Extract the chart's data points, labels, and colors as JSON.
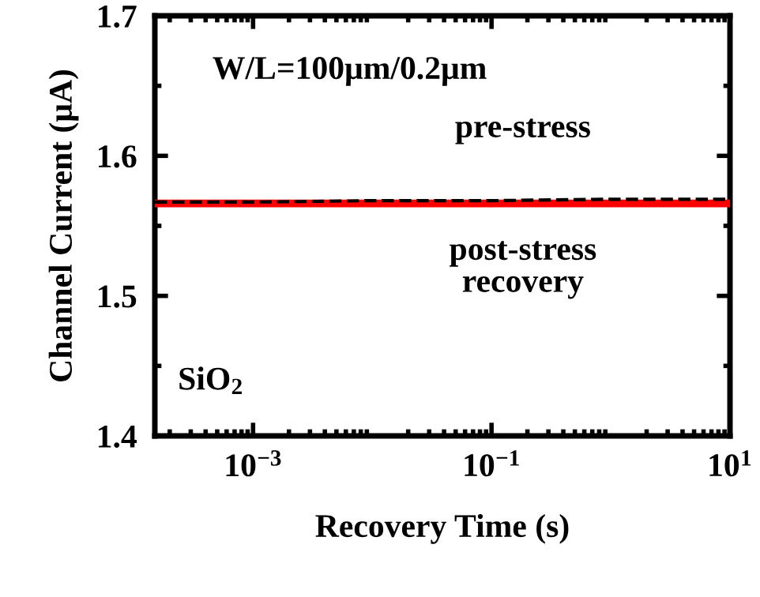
{
  "chart_data": {
    "type": "line",
    "xlabel": "Recovery Time (s)",
    "ylabel": "Channel Current (μA)",
    "log": "x",
    "xlim": [
      0.00015,
      10
    ],
    "ylim": [
      1.4,
      1.7
    ],
    "xticks": [
      {
        "value": 0.001,
        "label": "10$^{−3}$"
      },
      {
        "value": 0.1,
        "label": "10$^{−1}$"
      },
      {
        "value": 10,
        "label": "10$^{1}$"
      }
    ],
    "yticks": [
      {
        "value": 1.4,
        "label": "1.4"
      },
      {
        "value": 1.5,
        "label": "1.5"
      },
      {
        "value": 1.6,
        "label": "1.6"
      },
      {
        "value": 1.7,
        "label": "1.7"
      }
    ],
    "grid": false,
    "legend": false,
    "marker": "none",
    "series": [
      {
        "name": "pre-stress",
        "color": "#000000",
        "line_style": "dashed",
        "x": [
          0.00015,
          0.001,
          0.01,
          0.1,
          1,
          10
        ],
        "values": [
          1.567,
          1.567,
          1.568,
          1.568,
          1.569,
          1.569
        ]
      },
      {
        "name": "post-stress recovery",
        "color": "#ff0000",
        "line_style": "solid",
        "x": [
          0.00015,
          0.001,
          0.01,
          0.1,
          1,
          10
        ],
        "values": [
          1.566,
          1.566,
          1.566,
          1.566,
          1.566,
          1.566
        ]
      }
    ],
    "annotations": [
      "W/L=100μm/0.2μm",
      "SiO$_{2}$"
    ]
  }
}
